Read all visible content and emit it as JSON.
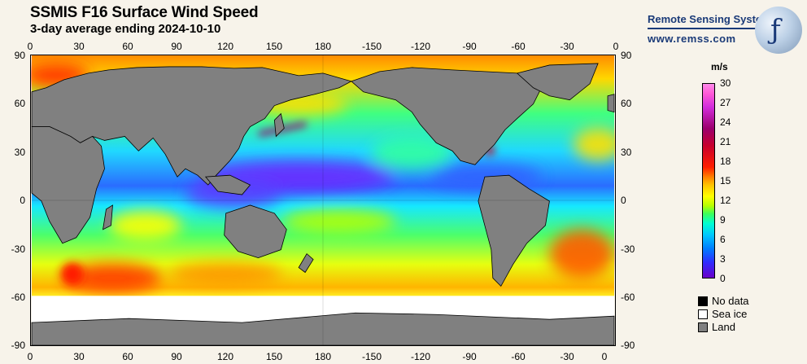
{
  "title": "SSMIS F16 Surface Wind Speed",
  "subtitle": "3-day average ending 2024-10-10",
  "brand": {
    "name": "Remote Sensing Systems",
    "url": "www.remss.com"
  },
  "axes": {
    "lon_top": [
      "0",
      "30",
      "60",
      "90",
      "120",
      "150",
      "180",
      "-150",
      "-120",
      "-90",
      "-60",
      "-30",
      "0"
    ],
    "lon_bottom": [
      "0",
      "30",
      "60",
      "90",
      "120",
      "150",
      "180",
      "-150",
      "-120",
      "-90",
      "-60",
      "-30",
      "0"
    ],
    "lat_left": [
      "90",
      "60",
      "30",
      "0",
      "-30",
      "-60",
      "-90"
    ],
    "lat_right": [
      "90",
      "60",
      "30",
      "0",
      "-30",
      "-60",
      "-90"
    ]
  },
  "colorbar": {
    "unit": "m/s",
    "min": 0,
    "max": 30,
    "ticks": [
      "30",
      "27",
      "24",
      "21",
      "18",
      "15",
      "12",
      "9",
      "6",
      "3",
      "0"
    ]
  },
  "legend": [
    {
      "label": "No data",
      "color": "#000000"
    },
    {
      "label": "Sea ice",
      "color": "#ffffff"
    },
    {
      "label": "Land",
      "color": "#808080"
    }
  ],
  "colors": {
    "land": "#808080",
    "ocean_mid": "#31f07a",
    "sea_ice": "#ffffff",
    "brand": "#1a3a78"
  }
}
